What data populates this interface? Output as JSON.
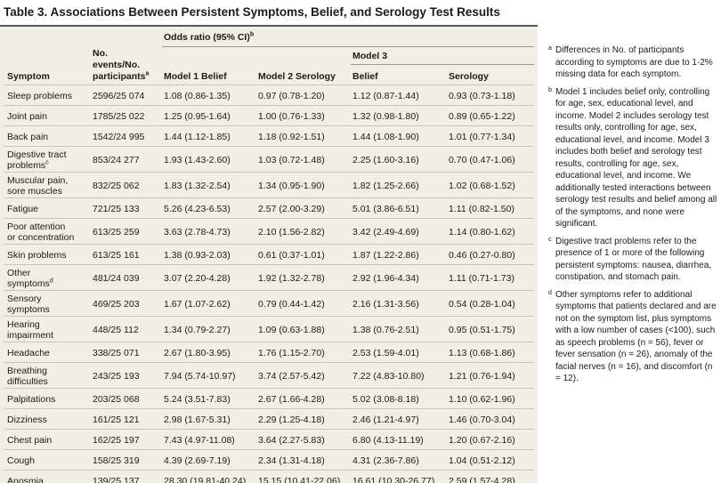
{
  "title": "Table 3. Associations Between Persistent Symptoms, Belief, and Serology Test Results",
  "headers": {
    "symptom": "Symptom",
    "events": "No. events/No. participants",
    "events_line1": "No.",
    "events_line2": "events/No.",
    "events_line3": "participants",
    "events_sup": "a",
    "odds_ratio": "Odds ratio (95% CI)",
    "odds_ratio_sup": "b",
    "model1": "Model 1 Belief",
    "model2": "Model 2 Serology",
    "model3": "Model 3",
    "belief": "Belief",
    "serology": "Serology"
  },
  "rows": [
    {
      "symptom": "Sleep problems",
      "symptom_line2": "",
      "sup": "",
      "events": "2596/25 074",
      "m1": "1.08 (0.86-1.35)",
      "m2": "0.97 (0.78-1.20)",
      "m3b": "1.12 (0.87-1.44)",
      "m3s": "0.93 (0.73-1.18)"
    },
    {
      "symptom": "Joint pain",
      "symptom_line2": "",
      "sup": "",
      "events": "1785/25 022",
      "m1": "1.25 (0.95-1.64)",
      "m2": "1.00 (0.76-1.33)",
      "m3b": "1.32 (0.98-1.80)",
      "m3s": "0.89 (0.65-1.22)"
    },
    {
      "symptom": "Back pain",
      "symptom_line2": "",
      "sup": "",
      "events": "1542/24 995",
      "m1": "1.44 (1.12-1.85)",
      "m2": "1.18 (0.92-1.51)",
      "m3b": "1.44 (1.08-1.90)",
      "m3s": "1.01 (0.77-1.34)"
    },
    {
      "symptom": "Digestive tract",
      "symptom_line2": "problems",
      "sup": "c",
      "events": "853/24 277",
      "m1": "1.93 (1.43-2.60)",
      "m2": "1.03 (0.72-1.48)",
      "m3b": "2.25 (1.60-3.16)",
      "m3s": "0.70 (0.47-1.06)"
    },
    {
      "symptom": "Muscular pain,",
      "symptom_line2": "sore muscles",
      "sup": "",
      "events": "832/25 062",
      "m1": "1.83 (1.32-2.54)",
      "m2": "1.34 (0.95-1.90)",
      "m3b": "1.82 (1.25-2.66)",
      "m3s": "1.02 (0.68-1.52)"
    },
    {
      "symptom": "Fatigue",
      "symptom_line2": "",
      "sup": "",
      "events": "721/25 133",
      "m1": "5.26 (4.23-6.53)",
      "m2": "2.57 (2.00-3.29)",
      "m3b": "5.01 (3.86-6.51)",
      "m3s": "1.11 (0.82-1.50)"
    },
    {
      "symptom": "Poor attention",
      "symptom_line2": "or concentration",
      "sup": "",
      "events": "613/25 259",
      "m1": "3.63 (2.78-4.73)",
      "m2": "2.10 (1.56-2.82)",
      "m3b": "3.42 (2.49-4.69)",
      "m3s": "1.14 (0.80-1.62)"
    },
    {
      "symptom": "Skin problems",
      "symptom_line2": "",
      "sup": "",
      "events": "613/25 161",
      "m1": "1.38 (0.93-2.03)",
      "m2": "0.61 (0.37-1.01)",
      "m3b": "1.87 (1.22-2.86)",
      "m3s": "0.46 (0.27-0.80)"
    },
    {
      "symptom": "Other",
      "symptom_line2": "symptoms",
      "sup": "d",
      "events": "481/24 039",
      "m1": "3.07 (2.20-4.28)",
      "m2": "1.92 (1.32-2.78)",
      "m3b": "2.92 (1.96-4.34)",
      "m3s": "1.11 (0.71-1.73)"
    },
    {
      "symptom": "Sensory",
      "symptom_line2": "symptoms",
      "sup": "",
      "events": "469/25 203",
      "m1": "1.67 (1.07-2.62)",
      "m2": "0.79 (0.44-1.42)",
      "m3b": "2.16 (1.31-3.56)",
      "m3s": "0.54 (0.28-1.04)"
    },
    {
      "symptom": "Hearing",
      "symptom_line2": "impairment",
      "sup": "",
      "events": "448/25 112",
      "m1": "1.34 (0.79-2.27)",
      "m2": "1.09 (0.63-1.88)",
      "m3b": "1.38 (0.76-2.51)",
      "m3s": "0.95 (0.51-1.75)"
    },
    {
      "symptom": "Headache",
      "symptom_line2": "",
      "sup": "",
      "events": "338/25 071",
      "m1": "2.67 (1.80-3.95)",
      "m2": "1.76 (1.15-2.70)",
      "m3b": "2.53 (1.59-4.01)",
      "m3s": "1.13 (0.68-1.86)"
    },
    {
      "symptom": "Breathing",
      "symptom_line2": "difficulties",
      "sup": "",
      "events": "243/25 193",
      "m1": "7.94 (5.74-10.97)",
      "m2": "3.74 (2.57-5.42)",
      "m3b": "7.22 (4.83-10.80)",
      "m3s": "1.21 (0.76-1.94)"
    },
    {
      "symptom": "Palpitations",
      "symptom_line2": "",
      "sup": "",
      "events": "203/25 068",
      "m1": "5.24 (3.51-7.83)",
      "m2": "2.67 (1.66-4.28)",
      "m3b": "5.02 (3.08-8.18)",
      "m3s": "1.10 (0.62-1.96)"
    },
    {
      "symptom": "Dizziness",
      "symptom_line2": "",
      "sup": "",
      "events": "161/25 121",
      "m1": "2.98 (1.67-5.31)",
      "m2": "2.29 (1.25-4.18)",
      "m3b": "2.46 (1.21-4.97)",
      "m3s": "1.46 (0.70-3.04)"
    },
    {
      "symptom": "Chest pain",
      "symptom_line2": "",
      "sup": "",
      "events": "162/25 197",
      "m1": "7.43 (4.97-11.08)",
      "m2": "3.64 (2.27-5.83)",
      "m3b": "6.80 (4.13-11.19)",
      "m3s": "1.20 (0.67-2.16)"
    },
    {
      "symptom": "Cough",
      "symptom_line2": "",
      "sup": "",
      "events": "158/25 319",
      "m1": "4.39 (2.69-7.19)",
      "m2": "2.34 (1.31-4.18)",
      "m3b": "4.31 (2.36-7.86)",
      "m3s": "1.04 (0.51-2.12)"
    },
    {
      "symptom": "Anosmia",
      "symptom_line2": "",
      "sup": "",
      "events": "139/25 137",
      "m1": "28.30 (19.81-40.24)",
      "m2": "15.15 (10.41-22.06)",
      "m3b": "16.61 (10.30-26.77)",
      "m3s": "2.59 (1.57-4.28)"
    }
  ],
  "footnotes": [
    {
      "mark": "a",
      "text": "Differences in No. of participants according to symptoms are due to 1-2% missing data for each symptom."
    },
    {
      "mark": "b",
      "text": "Model 1 includes belief only, controlling for age, sex, educational level, and income. Model 2 includes serology test results only, controlling for age, sex, educational level, and income. Model 3 includes both belief and serology test results, controlling for age, sex, educational level, and income. We additionally tested interactions between serology test results and belief among all of the symptoms, and none were significant."
    },
    {
      "mark": "c",
      "text": "Digestive tract problems refer to the presence of 1 or more of the following persistent symptoms: nausea, diarrhea, constipation, and stomach pain."
    },
    {
      "mark": "d",
      "text": "Other symptoms refer to additional symptoms that patients declared and are not on the symptom list, plus symptoms with a low number of cases (<100), such as speech problems (n = 56), fever or fever sensation (n = 26), anomaly of the facial nerves (n = 16), and discomfort (n = 12)."
    }
  ]
}
